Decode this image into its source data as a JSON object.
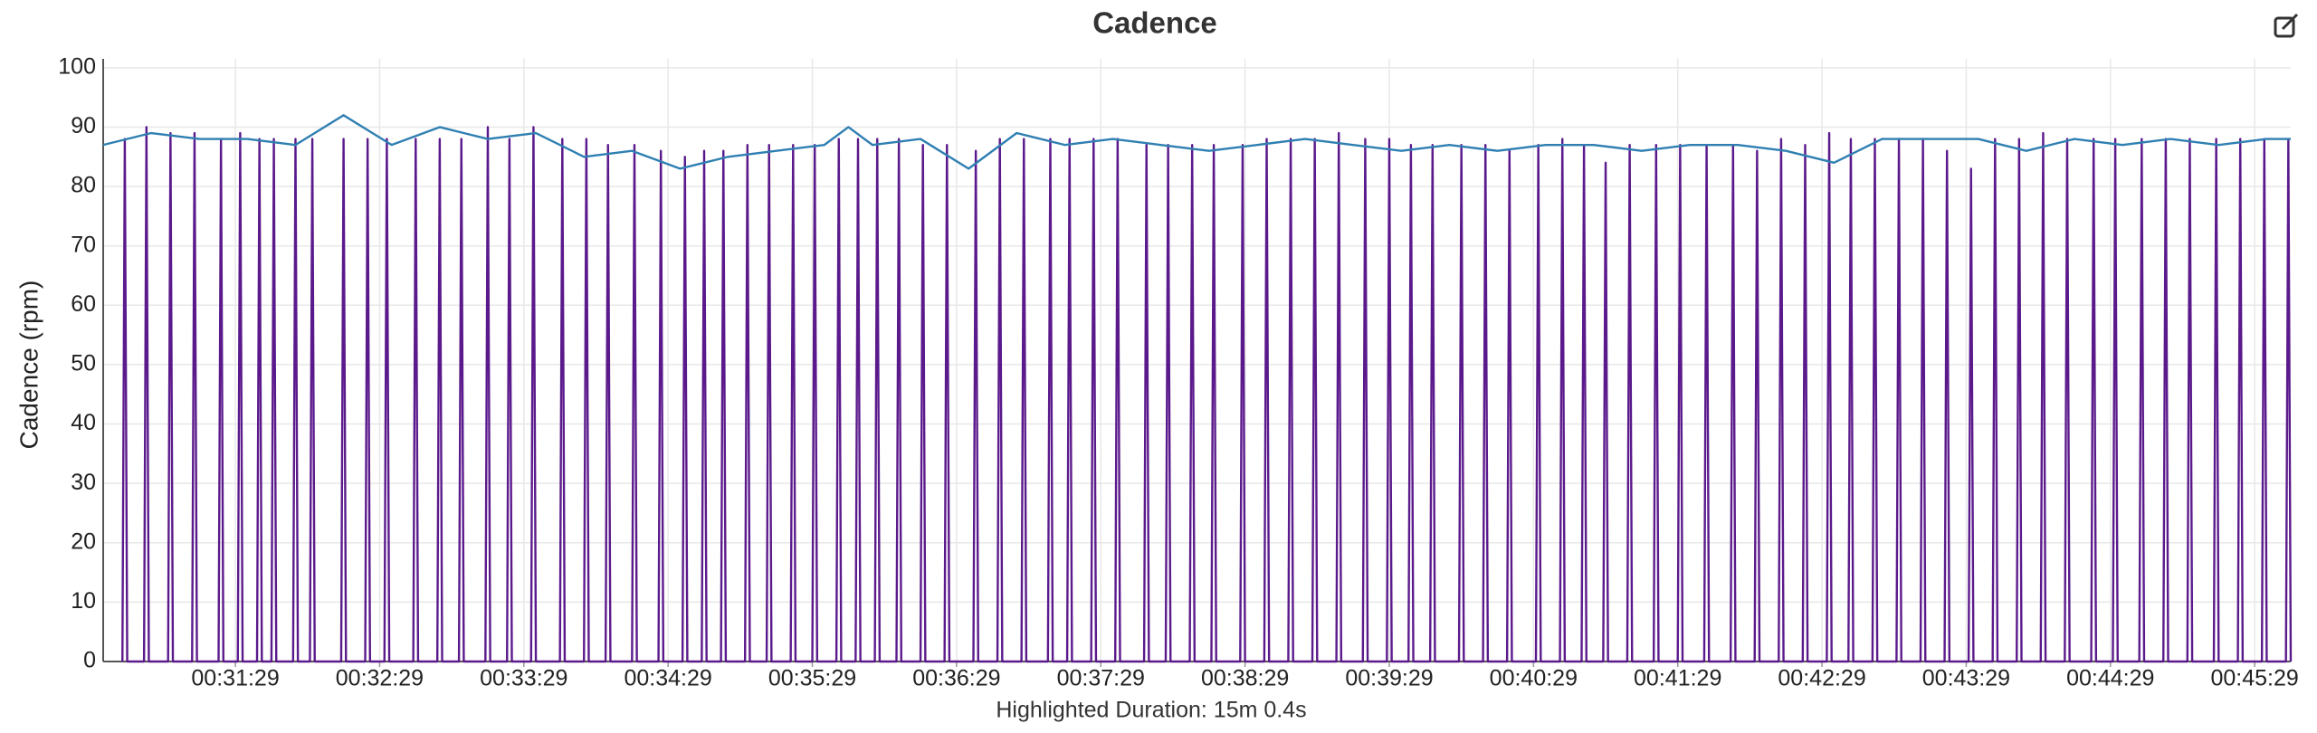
{
  "chart_data": {
    "type": "line",
    "title": "Cadence",
    "y_label": "Cadence (rpm)",
    "footer": "Highlighted Duration: 15m 0.4s",
    "grid": true,
    "xlim": [
      1834,
      2744
    ],
    "xticks": [
      {
        "value": 1889,
        "label": "00:31:29"
      },
      {
        "value": 1949,
        "label": "00:32:29"
      },
      {
        "value": 2009,
        "label": "00:33:29"
      },
      {
        "value": 2069,
        "label": "00:34:29"
      },
      {
        "value": 2129,
        "label": "00:35:29"
      },
      {
        "value": 2189,
        "label": "00:36:29"
      },
      {
        "value": 2249,
        "label": "00:37:29"
      },
      {
        "value": 2309,
        "label": "00:38:29"
      },
      {
        "value": 2369,
        "label": "00:39:29"
      },
      {
        "value": 2429,
        "label": "00:40:29"
      },
      {
        "value": 2489,
        "label": "00:41:29"
      },
      {
        "value": 2549,
        "label": "00:42:29"
      },
      {
        "value": 2609,
        "label": "00:43:29"
      },
      {
        "value": 2669,
        "label": "00:44:29"
      },
      {
        "value": 2729,
        "label": "00:45:29"
      }
    ],
    "ylim": [
      0,
      101.5
    ],
    "yticks": [
      0,
      10,
      20,
      30,
      40,
      50,
      60,
      70,
      80,
      90,
      100
    ],
    "series": [
      {
        "color": "#5b1a8c",
        "x": [
          1842,
          1843,
          1844,
          1851,
          1852,
          1853,
          1861,
          1862,
          1863,
          1871,
          1872,
          1873,
          1882,
          1883,
          1884,
          1890,
          1891,
          1892,
          1898,
          1899,
          1900,
          1904,
          1905,
          1906,
          1913,
          1914,
          1915,
          1920,
          1921,
          1922,
          1933,
          1934,
          1935,
          1943,
          1944,
          1945,
          1951,
          1952,
          1953,
          1963,
          1964,
          1965,
          1973,
          1974,
          1975,
          1982,
          1983,
          1984,
          1993,
          1994,
          1995,
          2002,
          2003,
          2004,
          2012,
          2013,
          2014,
          2024,
          2025,
          2026,
          2034,
          2035,
          2036,
          2043,
          2044,
          2045,
          2054,
          2055,
          2056,
          2065,
          2066,
          2067,
          2075,
          2076,
          2077,
          2083,
          2084,
          2085,
          2091,
          2092,
          2093,
          2101,
          2102,
          2103,
          2110,
          2111,
          2112,
          2120,
          2121,
          2122,
          2129,
          2130,
          2131,
          2139,
          2140,
          2141,
          2147,
          2148,
          2149,
          2155,
          2156,
          2157,
          2164,
          2165,
          2166,
          2174,
          2175,
          2176,
          2184,
          2185,
          2186,
          2196,
          2197,
          2198,
          2206,
          2207,
          2208,
          2216,
          2217,
          2218,
          2227,
          2228,
          2229,
          2235,
          2236,
          2237,
          2245,
          2246,
          2247,
          2255,
          2256,
          2257,
          2267,
          2268,
          2269,
          2276,
          2277,
          2278,
          2286,
          2287,
          2288,
          2295,
          2296,
          2297,
          2307,
          2308,
          2309,
          2317,
          2318,
          2319,
          2327,
          2328,
          2329,
          2337,
          2338,
          2339,
          2347,
          2348,
          2349,
          2358,
          2359,
          2360,
          2368,
          2369,
          2370,
          2377,
          2378,
          2379,
          2386,
          2387,
          2388,
          2398,
          2399,
          2400,
          2408,
          2409,
          2410,
          2418,
          2419,
          2420,
          2430,
          2431,
          2432,
          2440,
          2441,
          2442,
          2449,
          2450,
          2451,
          2458,
          2459,
          2460,
          2468,
          2469,
          2470,
          2479,
          2480,
          2481,
          2489,
          2490,
          2491,
          2500,
          2501,
          2502,
          2511,
          2512,
          2513,
          2521,
          2522,
          2523,
          2531,
          2532,
          2533,
          2541,
          2542,
          2543,
          2551,
          2552,
          2553,
          2560,
          2561,
          2562,
          2570,
          2571,
          2572,
          2580,
          2581,
          2582,
          2590,
          2591,
          2592,
          2600,
          2601,
          2602,
          2610,
          2611,
          2612,
          2620,
          2621,
          2622,
          2630,
          2631,
          2632,
          2640,
          2641,
          2642,
          2650,
          2651,
          2652,
          2661,
          2662,
          2663,
          2670,
          2671,
          2672,
          2681,
          2682,
          2683,
          2691,
          2692,
          2693,
          2701,
          2702,
          2703,
          2712,
          2713,
          2714,
          2722,
          2723,
          2724,
          2732,
          2733,
          2734,
          2742,
          2743,
          2744
        ],
        "values": [
          0,
          88,
          0,
          0,
          90,
          0,
          0,
          89,
          0,
          0,
          89,
          0,
          0,
          88,
          0,
          0,
          89,
          0,
          0,
          88,
          0,
          0,
          88,
          0,
          0,
          88,
          0,
          0,
          88,
          0,
          0,
          88,
          0,
          0,
          88,
          0,
          0,
          88,
          0,
          0,
          88,
          0,
          0,
          88,
          0,
          0,
          88,
          0,
          0,
          90,
          0,
          0,
          88,
          0,
          0,
          90,
          0,
          0,
          88,
          0,
          0,
          88,
          0,
          0,
          87,
          0,
          0,
          87,
          0,
          0,
          86,
          0,
          0,
          85,
          0,
          0,
          86,
          0,
          0,
          86,
          0,
          0,
          87,
          0,
          0,
          87,
          0,
          0,
          87,
          0,
          0,
          87,
          0,
          0,
          88,
          0,
          0,
          88,
          0,
          0,
          88,
          0,
          0,
          88,
          0,
          0,
          87,
          0,
          0,
          87,
          0,
          0,
          86,
          0,
          0,
          88,
          0,
          0,
          88,
          0,
          0,
          88,
          0,
          0,
          88,
          0,
          0,
          88,
          0,
          0,
          88,
          0,
          0,
          87,
          0,
          0,
          87,
          0,
          0,
          87,
          0,
          0,
          87,
          0,
          0,
          87,
          0,
          0,
          88,
          0,
          0,
          88,
          0,
          0,
          88,
          0,
          0,
          89,
          0,
          0,
          88,
          0,
          0,
          88,
          0,
          0,
          87,
          0,
          0,
          87,
          0,
          0,
          87,
          0,
          0,
          87,
          0,
          0,
          86,
          0,
          0,
          87,
          0,
          0,
          88,
          0,
          0,
          87,
          0,
          0,
          84,
          0,
          0,
          87,
          0,
          0,
          87,
          0,
          0,
          87,
          0,
          0,
          87,
          0,
          0,
          87,
          0,
          0,
          86,
          0,
          0,
          88,
          0,
          0,
          87,
          0,
          0,
          89,
          0,
          0,
          88,
          0,
          0,
          88,
          0,
          0,
          88,
          0,
          0,
          88,
          0,
          0,
          86,
          0,
          0,
          83,
          0,
          0,
          88,
          0,
          0,
          88,
          0,
          0,
          89,
          0,
          0,
          88,
          0,
          0,
          88,
          0,
          0,
          88,
          0,
          0,
          88,
          0,
          0,
          88,
          0,
          0,
          88,
          0,
          0,
          88,
          0,
          0,
          88,
          0,
          0,
          88,
          0,
          0,
          88,
          0
        ]
      },
      {
        "color": "#2f7fb2",
        "x": [
          1834,
          1854,
          1874,
          1894,
          1914,
          1934,
          1954,
          1974,
          1994,
          2014,
          2034,
          2054,
          2074,
          2094,
          2114,
          2134,
          2144,
          2154,
          2174,
          2194,
          2214,
          2234,
          2254,
          2274,
          2294,
          2314,
          2334,
          2354,
          2374,
          2394,
          2414,
          2434,
          2454,
          2474,
          2494,
          2514,
          2534,
          2554,
          2574,
          2594,
          2614,
          2634,
          2654,
          2674,
          2694,
          2714,
          2734,
          2744
        ],
        "values": [
          87,
          89,
          88,
          88,
          87,
          92,
          87,
          90,
          88,
          89,
          85,
          86,
          83,
          85,
          86,
          87,
          90,
          87,
          88,
          83,
          89,
          87,
          88,
          87,
          86,
          87,
          88,
          87,
          86,
          87,
          86,
          87,
          87,
          86,
          87,
          87,
          86,
          84,
          88,
          88,
          88,
          86,
          88,
          87,
          88,
          87,
          88,
          88
        ]
      }
    ]
  }
}
